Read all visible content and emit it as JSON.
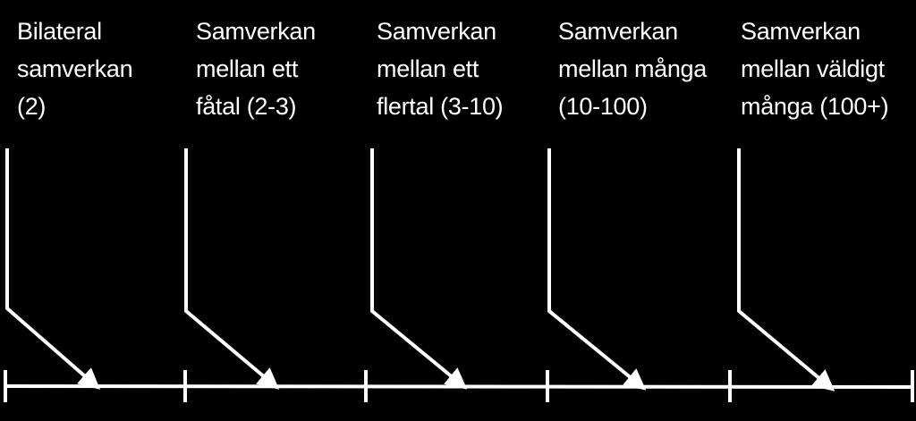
{
  "colors": {
    "background": "#000000",
    "foreground": "#ffffff"
  },
  "categories": [
    {
      "lines": [
        "Bilateral",
        "samverkan",
        "(2)"
      ]
    },
    {
      "lines": [
        "Samverkan",
        "mellan ett",
        "fåtal (2-3)"
      ]
    },
    {
      "lines": [
        "Samverkan",
        "mellan ett",
        "flertal (3-10)"
      ]
    },
    {
      "lines": [
        "Samverkan",
        "mellan många",
        "(10-100)"
      ]
    },
    {
      "lines": [
        "Samverkan",
        "mellan väldigt",
        "många (100+)"
      ]
    }
  ]
}
